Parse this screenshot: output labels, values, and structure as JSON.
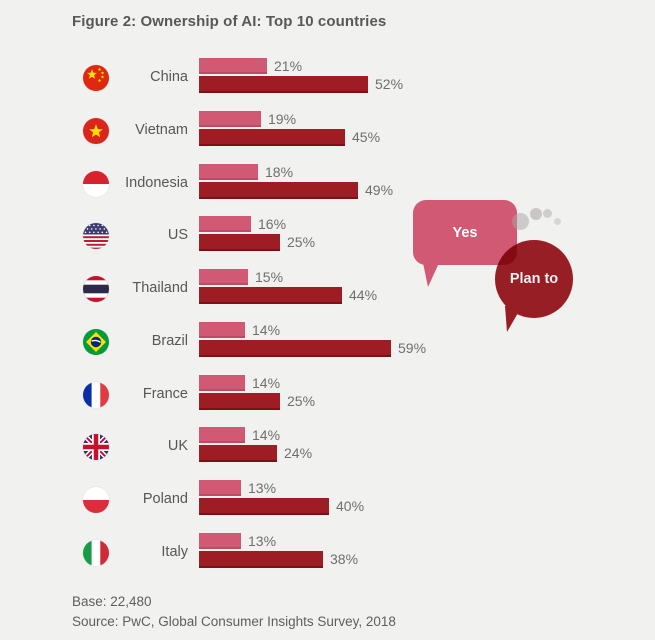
{
  "title": "Figure 2: Ownership of AI: Top 10 countries",
  "legend": {
    "yes": "Yes",
    "plan_to": "Plan to"
  },
  "footer": {
    "base": "Base: 22,480",
    "source": "Source: PwC, Global Consumer Insights Survey, 2018"
  },
  "colors": {
    "background": "#f1f1f0",
    "yes_bar": "#d25973",
    "plan_bar": "#9e1c24",
    "legend_yes_bubble": "#d25973",
    "legend_plan_bubble": "#a11f28",
    "title_text": "#58585b",
    "value_text": "#6f6f6f"
  },
  "chart_data": {
    "type": "bar",
    "orientation": "horizontal",
    "title": "Figure 2: Ownership of AI: Top 10 countries",
    "categories": [
      "China",
      "Vietnam",
      "Indonesia",
      "US",
      "Thailand",
      "Brazil",
      "France",
      "UK",
      "Poland",
      "Italy"
    ],
    "flags": [
      "flag-china-icon",
      "flag-vietnam-icon",
      "flag-indonesia-icon",
      "flag-us-icon",
      "flag-thailand-icon",
      "flag-brazil-icon",
      "flag-france-icon",
      "flag-uk-icon",
      "flag-poland-icon",
      "flag-italy-icon"
    ],
    "series": [
      {
        "name": "Yes",
        "values": [
          21,
          19,
          18,
          16,
          15,
          14,
          14,
          14,
          13,
          13
        ]
      },
      {
        "name": "Plan to",
        "values": [
          52,
          45,
          49,
          25,
          44,
          59,
          25,
          24,
          40,
          38
        ]
      }
    ],
    "value_suffix": "%",
    "xlim": [
      0,
      62
    ],
    "legend_position": "right",
    "grid": false
  }
}
